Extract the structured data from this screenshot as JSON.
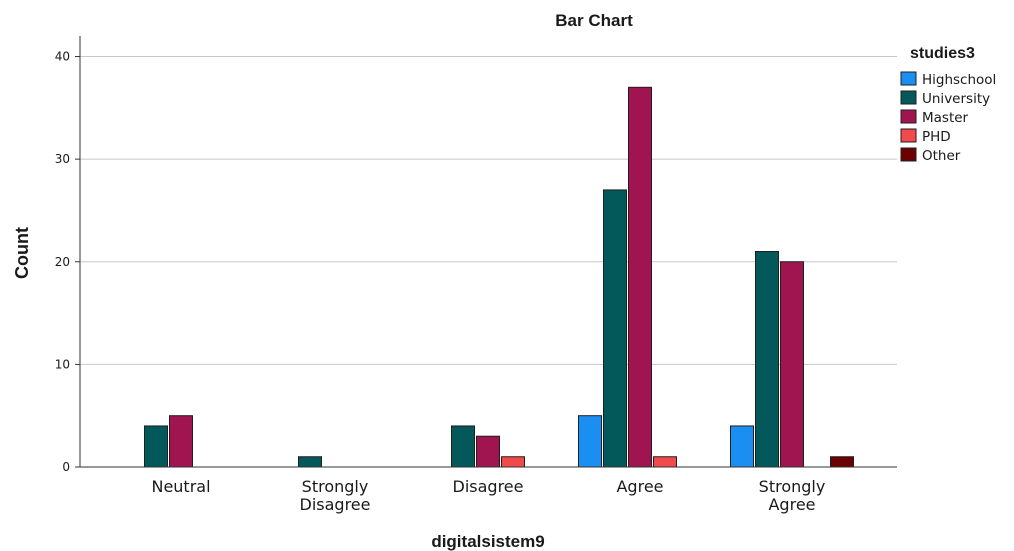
{
  "chart_data": {
    "type": "bar",
    "title": "Bar Chart",
    "xlabel": "digitalsistem9",
    "ylabel": "Count",
    "ylim": [
      0,
      42
    ],
    "yticks": [
      0,
      10,
      20,
      30,
      40
    ],
    "grid": true,
    "legend": {
      "title": "studies3",
      "placement": "right"
    },
    "categories": [
      [
        "Neutral"
      ],
      [
        "Strongly",
        "Disagree"
      ],
      [
        "Disagree"
      ],
      [
        "Agree"
      ],
      [
        "Strongly",
        "Agree"
      ]
    ],
    "series": [
      {
        "name": "Highschool",
        "color": "#1b8ef2",
        "values": [
          0,
          0,
          0,
          5,
          4
        ]
      },
      {
        "name": "University",
        "color": "#03585a",
        "values": [
          4,
          1,
          4,
          27,
          21
        ]
      },
      {
        "name": "Master",
        "color": "#a0154f",
        "values": [
          5,
          0,
          3,
          37,
          20
        ]
      },
      {
        "name": "PHD",
        "color": "#f04a4c",
        "values": [
          0,
          0,
          1,
          1,
          0
        ]
      },
      {
        "name": "Other",
        "color": "#6a0202",
        "values": [
          0,
          0,
          0,
          0,
          1
        ]
      }
    ]
  }
}
